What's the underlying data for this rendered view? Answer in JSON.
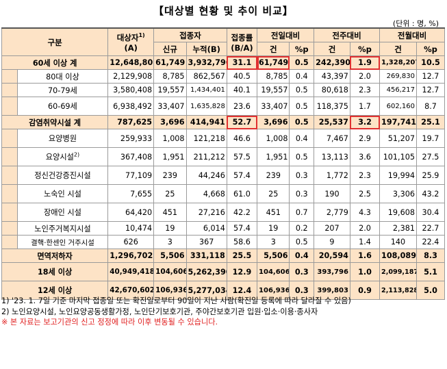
{
  "title": "【대상별 현황 및 추이 비교】",
  "unit": "(단위 : 명, %)",
  "headers": {
    "group": "구분",
    "target": "대상자",
    "target_sup": "1)",
    "target_sub": "(A)",
    "vaccinated": "접종자",
    "new": "신규",
    "cumulative": "누적(B)",
    "rate": "접종률",
    "rate_sub": "(B/A)",
    "prev_day": "전일대비",
    "prev_week": "전주대비",
    "prev_month": "전월대비",
    "count": "건",
    "pp": "%p"
  },
  "rows": [
    {
      "label": "60세 이상 계",
      "target": "12,648,808",
      "new": "61,749",
      "cum": "3,932,796",
      "rate": "31.1",
      "d_n": "61,749",
      "d_p": "0.5",
      "w_n": "242,390",
      "w_p": "1.9",
      "m_n": "1,328,207",
      "m_p": "10.5"
    },
    {
      "label": "80대 이상",
      "target": "2,129,908",
      "new": "8,785",
      "cum": "862,567",
      "rate": "40.5",
      "d_n": "8,785",
      "d_p": "0.4",
      "w_n": "43,397",
      "w_p": "2.0",
      "m_n": "269,830",
      "m_p": "12.7"
    },
    {
      "label": "70-79세",
      "target": "3,580,408",
      "new": "19,557",
      "cum": "1,434,401",
      "rate": "40.1",
      "d_n": "19,557",
      "d_p": "0.5",
      "w_n": "80,618",
      "w_p": "2.3",
      "m_n": "456,217",
      "m_p": "12.7"
    },
    {
      "label": "60-69세",
      "target": "6,938,492",
      "new": "33,407",
      "cum": "1,635,828",
      "rate": "23.6",
      "d_n": "33,407",
      "d_p": "0.5",
      "w_n": "118,375",
      "w_p": "1.7",
      "m_n": "602,160",
      "m_p": "8.7"
    },
    {
      "label": "감염취약시설 계",
      "target": "787,625",
      "new": "3,696",
      "cum": "414,941",
      "rate": "52.7",
      "d_n": "3,696",
      "d_p": "0.5",
      "w_n": "25,537",
      "w_p": "3.2",
      "m_n": "197,741",
      "m_p": "25.1"
    },
    {
      "label": "요양병원",
      "target": "259,933",
      "new": "1,008",
      "cum": "121,218",
      "rate": "46.6",
      "d_n": "1,008",
      "d_p": "0.4",
      "w_n": "7,467",
      "w_p": "2.9",
      "m_n": "51,207",
      "m_p": "19.7"
    },
    {
      "label": "요양시설",
      "label_sup": "2)",
      "target": "367,408",
      "new": "1,951",
      "cum": "211,212",
      "rate": "57.5",
      "d_n": "1,951",
      "d_p": "0.5",
      "w_n": "13,113",
      "w_p": "3.6",
      "m_n": "101,105",
      "m_p": "27.5"
    },
    {
      "label": "정신건강증진시설",
      "target": "77,109",
      "new": "239",
      "cum": "44,246",
      "rate": "57.4",
      "d_n": "239",
      "d_p": "0.3",
      "w_n": "1,772",
      "w_p": "2.3",
      "m_n": "19,994",
      "m_p": "25.9"
    },
    {
      "label": "노숙인 시설",
      "target": "7,655",
      "new": "25",
      "cum": "4,668",
      "rate": "61.0",
      "d_n": "25",
      "d_p": "0.3",
      "w_n": "190",
      "w_p": "2.5",
      "m_n": "3,306",
      "m_p": "43.2"
    },
    {
      "label": "장애인 시설",
      "target": "64,420",
      "new": "451",
      "cum": "27,216",
      "rate": "42.2",
      "d_n": "451",
      "d_p": "0.7",
      "w_n": "2,779",
      "w_p": "4.3",
      "m_n": "19,608",
      "m_p": "30.4"
    },
    {
      "label": "노인주거복지시설",
      "target": "10,474",
      "new": "19",
      "cum": "6,014",
      "rate": "57.4",
      "d_n": "19",
      "d_p": "0.2",
      "w_n": "207",
      "w_p": "2.0",
      "m_n": "2,381",
      "m_p": "22.7"
    },
    {
      "label": "결핵·한센인 거주시설",
      "target": "626",
      "new": "3",
      "cum": "367",
      "rate": "58.6",
      "d_n": "3",
      "d_p": "0.5",
      "w_n": "9",
      "w_p": "1.4",
      "m_n": "140",
      "m_p": "22.4"
    },
    {
      "label": "면역저하자",
      "target": "1,296,702",
      "new": "5,506",
      "cum": "331,118",
      "rate": "25.5",
      "d_n": "5,506",
      "d_p": "0.4",
      "w_n": "20,594",
      "w_p": "1.6",
      "m_n": "108,089",
      "m_p": "8.3"
    },
    {
      "label": "18세 이상",
      "target": "40,949,418",
      "new": "104,606",
      "cum": "5,262,390",
      "rate": "12.9",
      "d_n": "104,606",
      "d_p": "0.3",
      "w_n": "393,796",
      "w_p": "1.0",
      "m_n": "2,099,187",
      "m_p": "5.1"
    },
    {
      "label": "12세 이상",
      "target": "42,670,602",
      "new": "106,936",
      "cum": "5,277,034",
      "rate": "12.4",
      "d_n": "106,936",
      "d_p": "0.3",
      "w_n": "399,803",
      "w_p": "0.9",
      "m_n": "2,113,828",
      "m_p": "5.0"
    }
  ],
  "notes": {
    "n1": "1) '23. 1. 7일 기준 마지막 접종일 또는 확진일로부터 90일이 지난 사람(확진일 등록에 따라 달라질 수 있음)",
    "n2": "2) 노인요양시설, 노인요양공동생활가정, 노인단기보호기관, 주야간보호기관 입원·입소·이용·종사자",
    "n3": "※ 본 자료는 보고기관의 신고 정정에 따라 이후 변동될 수 있습니다."
  },
  "colors": {
    "header_bg": "#fde3c6",
    "highlight_border": "#e03030",
    "note_red": "#e02020"
  }
}
